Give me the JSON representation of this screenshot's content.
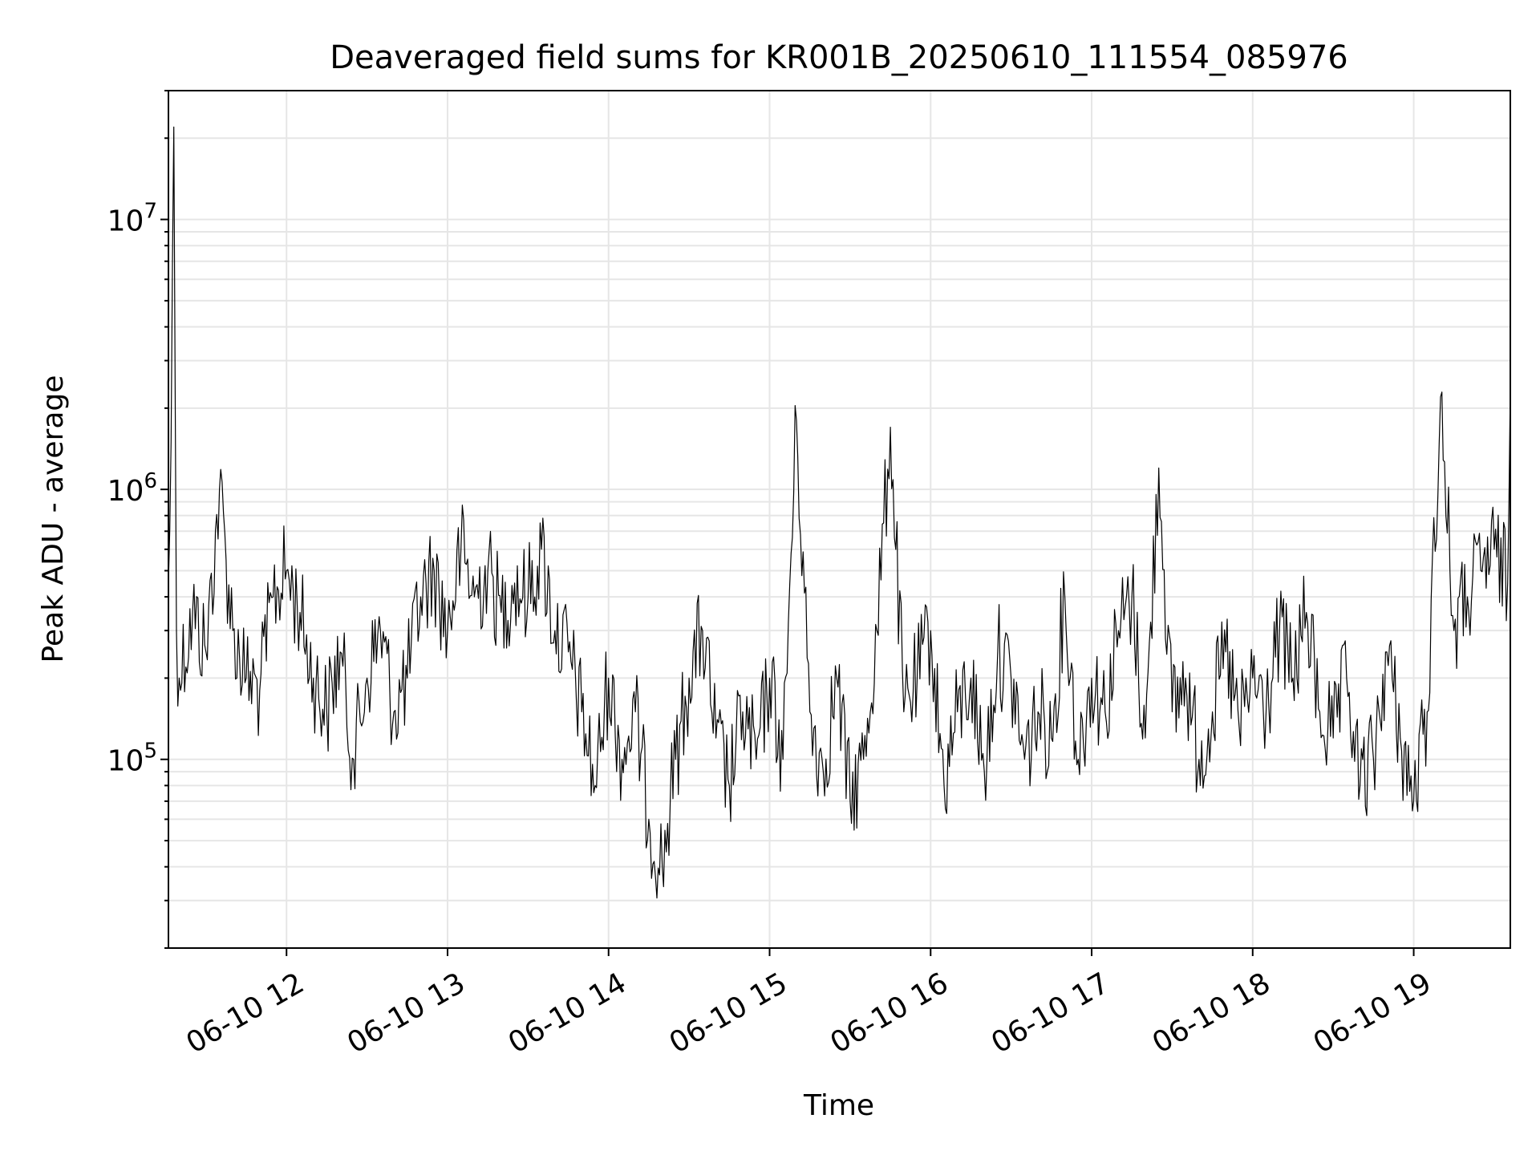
{
  "chart_data": {
    "type": "line",
    "title": "Deaveraged field sums for KR001B_20250610_111554_085976",
    "xlabel": "Time",
    "ylabel": "Peak ADU - average",
    "yscale": "log",
    "ylim": [
      20000,
      30000000
    ],
    "xlim": [
      "2025-06-10T11:16",
      "2025-06-10T19:36"
    ],
    "grid": true,
    "x_tick_labels": [
      "06-10 12",
      "06-10 13",
      "06-10 14",
      "06-10 15",
      "06-10 16",
      "06-10 17",
      "06-10 18",
      "06-10 19"
    ],
    "x_tick_times": [
      "2025-06-10T12:00",
      "2025-06-10T13:00",
      "2025-06-10T14:00",
      "2025-06-10T15:00",
      "2025-06-10T16:00",
      "2025-06-10T17:00",
      "2025-06-10T18:00",
      "2025-06-10T19:00"
    ],
    "y_ticks": [
      {
        "value": 100000,
        "base": "10",
        "exp": "5"
      },
      {
        "value": 1000000,
        "base": "10",
        "exp": "6"
      },
      {
        "value": 10000000,
        "base": "10",
        "exp": "7"
      }
    ],
    "line_color": "#000000",
    "series": [
      {
        "x": [
          "2025-06-10T11:16",
          "2025-06-10T11:17",
          "2025-06-10T11:18",
          "2025-06-10T11:19",
          "2025-06-10T11:20",
          "2025-06-10T11:25",
          "2025-06-10T11:30",
          "2025-06-10T11:35",
          "2025-06-10T11:40",
          "2025-06-10T11:45",
          "2025-06-10T11:50",
          "2025-06-10T11:55",
          "2025-06-10T12:00",
          "2025-06-10T12:05",
          "2025-06-10T12:10",
          "2025-06-10T12:15",
          "2025-06-10T12:20",
          "2025-06-10T12:25",
          "2025-06-10T12:30",
          "2025-06-10T12:35",
          "2025-06-10T12:40",
          "2025-06-10T12:45",
          "2025-06-10T12:50",
          "2025-06-10T12:55",
          "2025-06-10T13:00",
          "2025-06-10T13:05",
          "2025-06-10T13:10",
          "2025-06-10T13:15",
          "2025-06-10T13:20",
          "2025-06-10T13:25",
          "2025-06-10T13:30",
          "2025-06-10T13:35",
          "2025-06-10T13:40",
          "2025-06-10T13:45",
          "2025-06-10T13:50",
          "2025-06-10T13:55",
          "2025-06-10T14:00",
          "2025-06-10T14:05",
          "2025-06-10T14:10",
          "2025-06-10T14:15",
          "2025-06-10T14:20",
          "2025-06-10T14:25",
          "2025-06-10T14:30",
          "2025-06-10T14:35",
          "2025-06-10T14:40",
          "2025-06-10T14:45",
          "2025-06-10T14:50",
          "2025-06-10T14:55",
          "2025-06-10T15:00",
          "2025-06-10T15:05",
          "2025-06-10T15:10",
          "2025-06-10T15:15",
          "2025-06-10T15:20",
          "2025-06-10T15:25",
          "2025-06-10T15:30",
          "2025-06-10T15:35",
          "2025-06-10T15:40",
          "2025-06-10T15:45",
          "2025-06-10T15:50",
          "2025-06-10T15:55",
          "2025-06-10T16:00",
          "2025-06-10T16:05",
          "2025-06-10T16:10",
          "2025-06-10T16:15",
          "2025-06-10T16:20",
          "2025-06-10T16:25",
          "2025-06-10T16:30",
          "2025-06-10T16:35",
          "2025-06-10T16:40",
          "2025-06-10T16:45",
          "2025-06-10T16:50",
          "2025-06-10T16:55",
          "2025-06-10T17:00",
          "2025-06-10T17:05",
          "2025-06-10T17:10",
          "2025-06-10T17:15",
          "2025-06-10T17:20",
          "2025-06-10T17:25",
          "2025-06-10T17:30",
          "2025-06-10T17:35",
          "2025-06-10T17:40",
          "2025-06-10T17:45",
          "2025-06-10T17:50",
          "2025-06-10T17:55",
          "2025-06-10T18:00",
          "2025-06-10T18:05",
          "2025-06-10T18:10",
          "2025-06-10T18:15",
          "2025-06-10T18:20",
          "2025-06-10T18:25",
          "2025-06-10T18:30",
          "2025-06-10T18:35",
          "2025-06-10T18:40",
          "2025-06-10T18:45",
          "2025-06-10T18:50",
          "2025-06-10T18:55",
          "2025-06-10T19:00",
          "2025-06-10T19:05",
          "2025-06-10T19:10",
          "2025-06-10T19:15",
          "2025-06-10T19:20",
          "2025-06-10T19:25",
          "2025-06-10T19:30",
          "2025-06-10T19:35",
          "2025-06-10T19:36"
        ],
        "y": [
          450000,
          1500000,
          22000000,
          300000,
          200000,
          350000,
          250000,
          1000000,
          300000,
          200000,
          180000,
          400000,
          500000,
          350000,
          200000,
          150000,
          250000,
          100000,
          200000,
          300000,
          150000,
          200000,
          400000,
          500000,
          300000,
          600000,
          400000,
          500000,
          350000,
          450000,
          400000,
          600000,
          300000,
          250000,
          150000,
          80000,
          200000,
          100000,
          150000,
          60000,
          40000,
          100000,
          200000,
          300000,
          120000,
          80000,
          150000,
          100000,
          200000,
          100000,
          1800000,
          150000,
          90000,
          200000,
          70000,
          100000,
          300000,
          1700000,
          150000,
          200000,
          300000,
          80000,
          150000,
          200000,
          90000,
          250000,
          200000,
          100000,
          150000,
          120000,
          400000,
          100000,
          200000,
          150000,
          300000,
          400000,
          120000,
          1200000,
          150000,
          200000,
          100000,
          150000,
          250000,
          130000,
          200000,
          150000,
          300000,
          200000,
          350000,
          150000,
          120000,
          200000,
          80000,
          100000,
          250000,
          120000,
          70000,
          150000,
          2200000,
          300000,
          400000,
          500000,
          600000,
          450000,
          2400000
        ]
      }
    ]
  }
}
